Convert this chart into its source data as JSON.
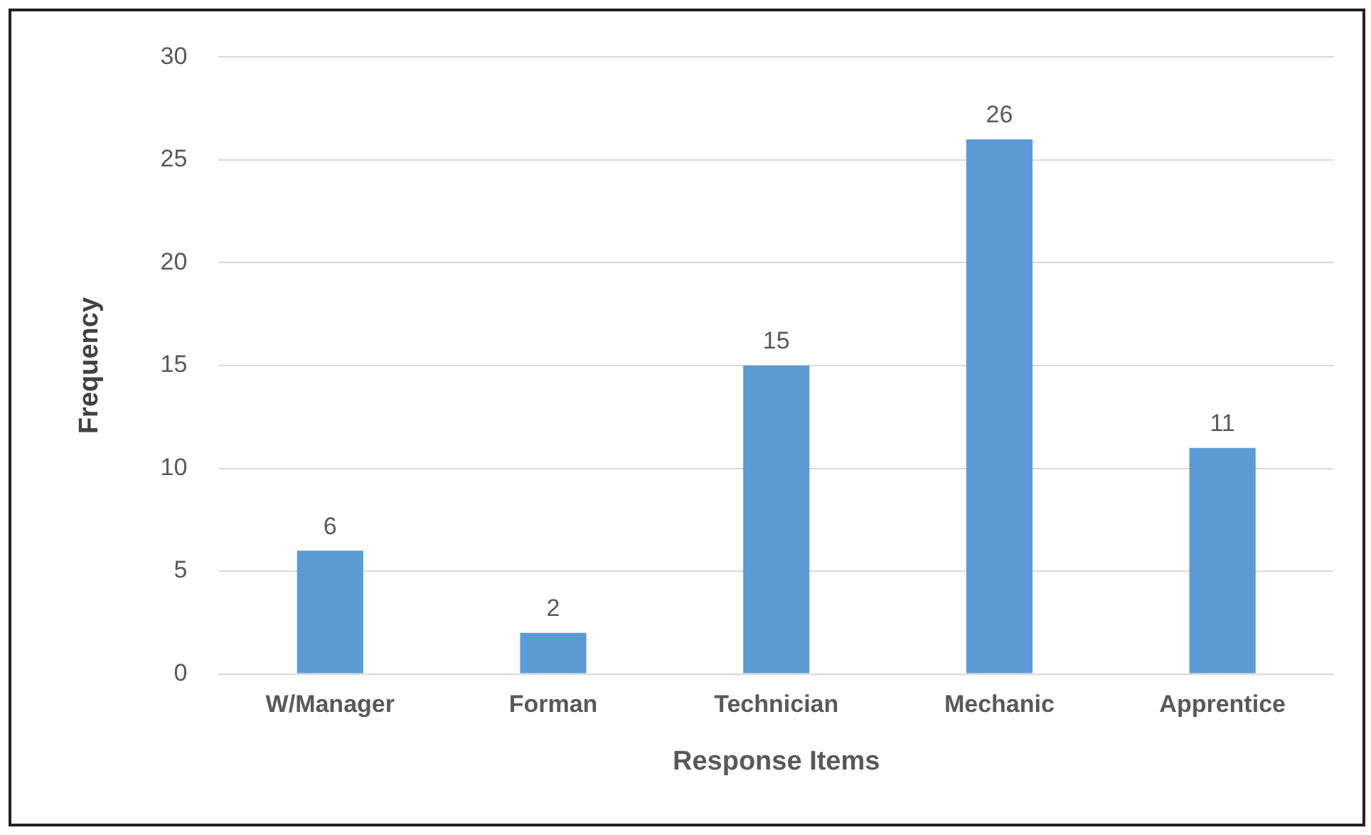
{
  "chart_data": {
    "type": "bar",
    "xlabel": "Response Items",
    "ylabel": "Frequency",
    "categories": [
      "W/Manager",
      "Forman",
      "Technician",
      "Mechanic",
      "Apprentice"
    ],
    "values": [
      6,
      2,
      15,
      26,
      11
    ],
    "color": "#5b9bd5",
    "ylim": [
      0,
      30
    ],
    "yticks": [
      0,
      5,
      10,
      15,
      20,
      25,
      30
    ],
    "grid": "y",
    "data_labels": true,
    "legend": false
  }
}
